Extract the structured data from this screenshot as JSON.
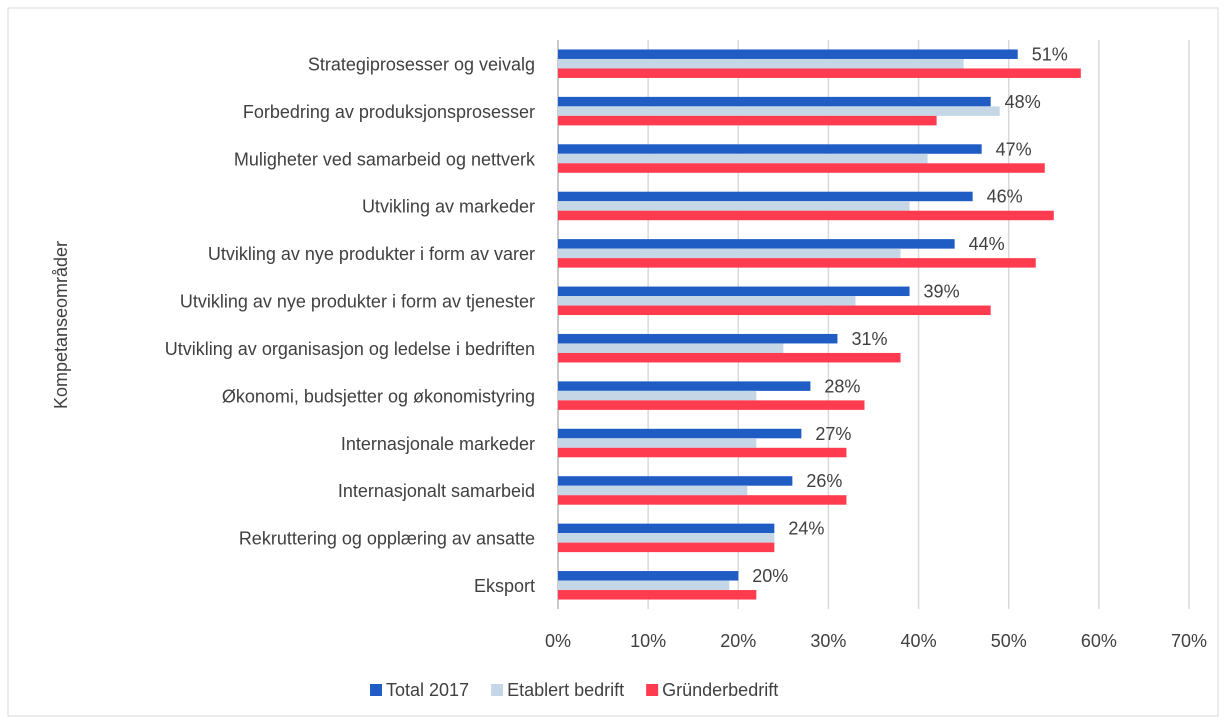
{
  "chart_data": {
    "type": "bar",
    "orientation": "horizontal",
    "y_label": "Kompetanseområder",
    "categories": [
      "Strategiprosesser og veivalg",
      "Forbedring av produksjonsprosesser",
      "Muligheter ved samarbeid og nettverk",
      "Utvikling av markeder",
      "Utvikling av nye produkter i form av varer",
      "Utvikling av nye produkter i form av tjenester",
      "Utvikling av organisasjon og ledelse i bedriften",
      "Økonomi, budsjetter og økonomistyring",
      "Internasjonale markeder",
      "Internasjonalt samarbeid",
      "Rekruttering og opplæring av ansatte",
      "Eksport"
    ],
    "series": [
      {
        "name": "Total 2017",
        "color": "#1f5cc4",
        "values": [
          51,
          48,
          47,
          46,
          44,
          39,
          31,
          28,
          27,
          26,
          24,
          20
        ],
        "value_labels": [
          "51%",
          "48%",
          "47%",
          "46%",
          "44%",
          "39%",
          "31%",
          "28%",
          "27%",
          "26%",
          "24%",
          "20%"
        ]
      },
      {
        "name": "Etablert bedrift",
        "color": "#c5d6e6",
        "values": [
          45,
          49,
          41,
          39,
          38,
          33,
          25,
          22,
          22,
          21,
          24,
          19
        ]
      },
      {
        "name": "Gründerbedrift",
        "color": "#ff3b50",
        "values": [
          58,
          42,
          54,
          55,
          53,
          48,
          38,
          34,
          32,
          32,
          24,
          22
        ]
      }
    ],
    "xlim": [
      0,
      70
    ],
    "xticks": [
      {
        "value": 0,
        "label": "0%"
      },
      {
        "value": 10,
        "label": "10%"
      },
      {
        "value": 20,
        "label": "20%"
      },
      {
        "value": 30,
        "label": "30%"
      },
      {
        "value": 40,
        "label": "40%"
      },
      {
        "value": 50,
        "label": "50%"
      },
      {
        "value": 60,
        "label": "60%"
      },
      {
        "value": 70,
        "label": "70%"
      }
    ],
    "grid": true,
    "legend": "bottom"
  }
}
